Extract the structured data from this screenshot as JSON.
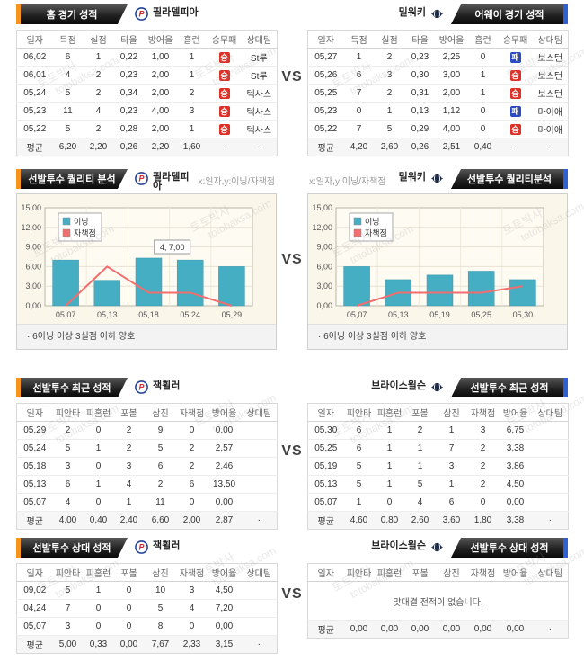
{
  "page": {
    "vs": "VS",
    "watermark_kr": "토토박사",
    "watermark_en": "totobaksa.com"
  },
  "colors": {
    "accent_orange": "#F7941E",
    "accent_blue": "#2E5FD3",
    "win_red": "#DE3026",
    "loss_blue": "#2B4AC6",
    "bar_teal": "#45AEC3",
    "bar_stroke": "#3A99AD",
    "line_salmon": "#F26E6E"
  },
  "row1": {
    "left": {
      "banner": "홈 경기 성적",
      "team": "필라델피아",
      "columns": [
        "일자",
        "득점",
        "실점",
        "타율",
        "방어율",
        "홈런",
        "승무패",
        "상대팀"
      ],
      "rows": [
        [
          "06,02",
          "6",
          "1",
          "0,22",
          "1,00",
          "1",
          "승",
          "St루"
        ],
        [
          "06,01",
          "4",
          "2",
          "0,23",
          "2,00",
          "1",
          "승",
          "St루"
        ],
        [
          "05,24",
          "5",
          "2",
          "0,34",
          "2,00",
          "2",
          "승",
          "텍사스"
        ],
        [
          "05,23",
          "11",
          "4",
          "0,23",
          "4,00",
          "3",
          "승",
          "텍사스"
        ],
        [
          "05,22",
          "5",
          "2",
          "0,28",
          "2,00",
          "1",
          "승",
          "텍사스"
        ]
      ],
      "avg": [
        "평균",
        "6,20",
        "2,20",
        "0,26",
        "2,20",
        "1,60",
        "·",
        "·"
      ]
    },
    "right": {
      "banner": "어웨이 경기 성적",
      "team": "밀워키",
      "columns": [
        "일자",
        "득점",
        "실점",
        "타율",
        "방어율",
        "홈런",
        "승무패",
        "상대팀"
      ],
      "rows": [
        [
          "05,27",
          "1",
          "2",
          "0,23",
          "2,25",
          "0",
          "패",
          "보스턴"
        ],
        [
          "05,26",
          "6",
          "3",
          "0,30",
          "3,00",
          "1",
          "승",
          "보스턴"
        ],
        [
          "05,25",
          "7",
          "2",
          "0,31",
          "2,00",
          "1",
          "승",
          "보스턴"
        ],
        [
          "05,23",
          "0",
          "1",
          "0,13",
          "1,12",
          "0",
          "패",
          "마이애"
        ],
        [
          "05,22",
          "7",
          "5",
          "0,29",
          "4,00",
          "0",
          "승",
          "마이애"
        ]
      ],
      "avg": [
        "평균",
        "4,20",
        "2,60",
        "0,26",
        "2,51",
        "0,40",
        "·",
        "·"
      ]
    }
  },
  "row2": {
    "left": {
      "banner": "선발투수 퀄리티 분석",
      "team": "필라델피아",
      "axis_label": "x:일자,y:이닝/자책점",
      "note": "·  6이닝 이상 3실점 이하 양호"
    },
    "right": {
      "banner": "선발투수 퀄리티분석",
      "team": "밀워키",
      "axis_label": "x:일자,y:이닝/자책점",
      "note": "·  6이닝 이상 3실점 이하 양호"
    }
  },
  "chart_data": [
    {
      "type": "bar",
      "title": "선발투수 퀄리티 분석 (필라델피아)",
      "categories": [
        "05,07",
        "05,13",
        "05,18",
        "05,24",
        "05,29"
      ],
      "series": [
        {
          "name": "이닝",
          "type": "bar",
          "values": [
            7.0,
            3.9,
            7.3,
            7.0,
            6.0
          ]
        },
        {
          "name": "자책점",
          "type": "line",
          "values": [
            0,
            6,
            2,
            2,
            0
          ]
        }
      ],
      "ylim": [
        0,
        15
      ],
      "yticks": [
        "0,00",
        "3,00",
        "6,00",
        "9,00",
        "12,00",
        "15,00"
      ],
      "legend": [
        "이닝",
        "자책점"
      ],
      "legend_position": "top-left",
      "grid": true,
      "tooltip": {
        "text": "4, 7,00",
        "index": 3
      }
    },
    {
      "type": "bar",
      "title": "선발투수 퀄리티분석 (밀워키)",
      "categories": [
        "05,07",
        "05,13",
        "05,19",
        "05,25",
        "05,30"
      ],
      "series": [
        {
          "name": "이닝",
          "type": "bar",
          "values": [
            6.0,
            4.0,
            4.7,
            5.3,
            4.0
          ]
        },
        {
          "name": "자책점",
          "type": "line",
          "values": [
            0,
            2,
            2,
            2,
            3
          ]
        }
      ],
      "ylim": [
        0,
        15
      ],
      "yticks": [
        "0,00",
        "3,00",
        "6,00",
        "9,00",
        "12,00",
        "15,00"
      ],
      "legend": [
        "이닝",
        "자책점"
      ],
      "legend_position": "top-left",
      "grid": true
    }
  ],
  "row3": {
    "left": {
      "banner": "선발투수 최근 성적",
      "team": "잭휠러",
      "columns": [
        "일자",
        "피안타",
        "피홈런",
        "포볼",
        "삼진",
        "자책점",
        "방어율",
        "상대팀"
      ],
      "rows": [
        [
          "05,29",
          "2",
          "0",
          "2",
          "9",
          "0",
          "0,00",
          ""
        ],
        [
          "05,24",
          "5",
          "1",
          "2",
          "5",
          "2",
          "2,57",
          ""
        ],
        [
          "05,18",
          "3",
          "0",
          "3",
          "6",
          "2",
          "2,46",
          ""
        ],
        [
          "05,13",
          "6",
          "1",
          "4",
          "2",
          "6",
          "13,50",
          ""
        ],
        [
          "05,07",
          "4",
          "0",
          "1",
          "11",
          "0",
          "0,00",
          ""
        ]
      ],
      "avg": [
        "평균",
        "4,00",
        "0,40",
        "2,40",
        "6,60",
        "2,00",
        "2,87",
        "·"
      ]
    },
    "right": {
      "banner": "선발투수 최근 성적",
      "team": "브라이스윌슨",
      "columns": [
        "일자",
        "피안타",
        "피홈런",
        "포볼",
        "삼진",
        "자책점",
        "방어율",
        "상대팀"
      ],
      "rows": [
        [
          "05,30",
          "6",
          "1",
          "2",
          "1",
          "3",
          "6,75",
          ""
        ],
        [
          "05,25",
          "6",
          "1",
          "1",
          "7",
          "2",
          "3,38",
          ""
        ],
        [
          "05,19",
          "5",
          "1",
          "1",
          "3",
          "2",
          "3,86",
          ""
        ],
        [
          "05,13",
          "5",
          "1",
          "5",
          "1",
          "2",
          "4,50",
          ""
        ],
        [
          "05,07",
          "1",
          "0",
          "4",
          "6",
          "0",
          "0,00",
          ""
        ]
      ],
      "avg": [
        "평균",
        "4,60",
        "0,80",
        "2,60",
        "3,60",
        "1,80",
        "3,38",
        "·"
      ]
    }
  },
  "row4": {
    "left": {
      "banner": "선발투수 상대 성적",
      "team": "잭휠러",
      "columns": [
        "일자",
        "피안타",
        "피홈런",
        "포볼",
        "삼진",
        "자책점",
        "방어율",
        "상대팀"
      ],
      "rows": [
        [
          "09,02",
          "5",
          "1",
          "0",
          "10",
          "3",
          "4,50",
          ""
        ],
        [
          "04,24",
          "7",
          "0",
          "0",
          "5",
          "4",
          "7,20",
          ""
        ],
        [
          "05,07",
          "3",
          "0",
          "0",
          "8",
          "0",
          "0,00",
          ""
        ]
      ],
      "avg": [
        "평균",
        "5,00",
        "0,33",
        "0,00",
        "7,67",
        "2,33",
        "3,15",
        "·"
      ]
    },
    "right": {
      "banner": "선발투수 상대 성적",
      "team": "브라이스윌슨",
      "columns": [
        "일자",
        "피안타",
        "피홈런",
        "포볼",
        "삼진",
        "자책점",
        "방어율",
        "상대팀"
      ],
      "message": "맞대결 전적이 없습니다.",
      "rows": [],
      "avg": [
        "평균",
        "0,00",
        "0,00",
        "0,00",
        "0,00",
        "0,00",
        "0,00",
        "·"
      ]
    }
  }
}
